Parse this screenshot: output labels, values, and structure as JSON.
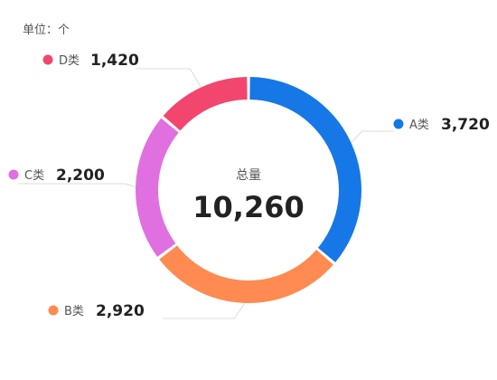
{
  "unit_label": "单位：个",
  "chart_data": {
    "type": "pie",
    "donut": true,
    "title": "",
    "center_caption": "总量",
    "center_total": "10,260",
    "slices": [
      {
        "name": "A类",
        "value": 3720,
        "value_label": "3,720",
        "color": "#1677e6"
      },
      {
        "name": "B类",
        "value": 2920,
        "value_label": "2,920",
        "color": "#ff8a52"
      },
      {
        "name": "C类",
        "value": 2200,
        "value_label": "2,200",
        "color": "#e070e0"
      },
      {
        "name": "D类",
        "value": 1420,
        "value_label": "1,420",
        "color": "#f2466e"
      }
    ]
  }
}
